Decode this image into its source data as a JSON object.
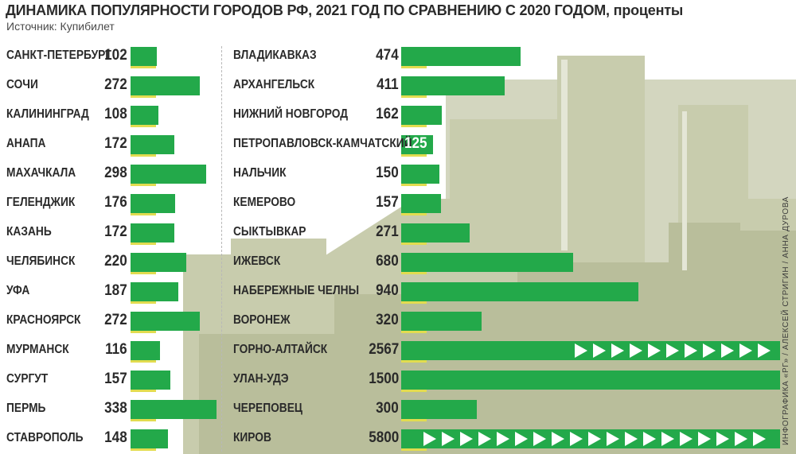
{
  "header": {
    "title": "ДИНАМИКА ПОПУЛЯРНОСТИ ГОРОДОВ РФ, 2021 ГОД ПО СРАВНЕНИЮ С 2020 ГОДОМ,",
    "unit": "проценты",
    "source": "Источник: Купибилет",
    "credit": "ИНФОГРАФИКА «РГ» / АЛЕКСЕЙ СТРИГИН / АННА ДУРОВА"
  },
  "colors": {
    "bar": "#23a94a",
    "axis_line": "#e2dc4f",
    "text": "#2a2a2a",
    "background_buildings": "#c9cdb0"
  },
  "chart_data": {
    "type": "bar",
    "orientation": "horizontal",
    "title": "ДИНАМИКА ПОПУЛЯРНОСТИ ГОРОДОВ РФ, 2021 ГОД ПО СРАВНЕНИЮ С 2020 ГОДОМ, проценты",
    "columns": [
      {
        "categories": [
          "САНКТ-ПЕТЕРБУРГ",
          "СОЧИ",
          "КАЛИНИНГРАД",
          "АНАПА",
          "МАХАЧКАЛА",
          "ГЕЛЕНДЖИК",
          "КАЗАНЬ",
          "ЧЕЛЯБИНСК",
          "УФА",
          "КРАСНОЯРСК",
          "МУРМАНСК",
          "СУРГУТ",
          "ПЕРМЬ",
          "СТАВРОПОЛЬ"
        ],
        "values": [
          102,
          272,
          108,
          172,
          298,
          176,
          172,
          220,
          187,
          272,
          116,
          157,
          338,
          148
        ]
      },
      {
        "categories": [
          "ВЛАДИКАВКАЗ",
          "АРХАНГЕЛЬСК",
          "НИЖНИЙ НОВГОРОД",
          "ПЕТРОПАВЛОВСК-КАМЧАТСКИЙ",
          "НАЛЬЧИК",
          "КЕМЕРОВО",
          "СЫКТЫВКАР",
          "ИЖЕВСК",
          "НАБЕРЕЖНЫЕ ЧЕЛНЫ",
          "ВОРОНЕЖ",
          "ГОРНО-АЛТАЙСК",
          "УЛАН-УДЭ",
          "ЧЕРЕПОВЕЦ",
          "КИРОВ"
        ],
        "values": [
          474,
          411,
          162,
          125,
          150,
          157,
          271,
          680,
          940,
          320,
          2567,
          1500,
          300,
          5800
        ],
        "truncated": [
          "ГОРНО-АЛТАЙСК",
          "КИРОВ"
        ],
        "label_inside_bar": [
          "ПЕТРОПАВЛОВСК-КАМЧАТСКИЙ"
        ]
      }
    ]
  }
}
